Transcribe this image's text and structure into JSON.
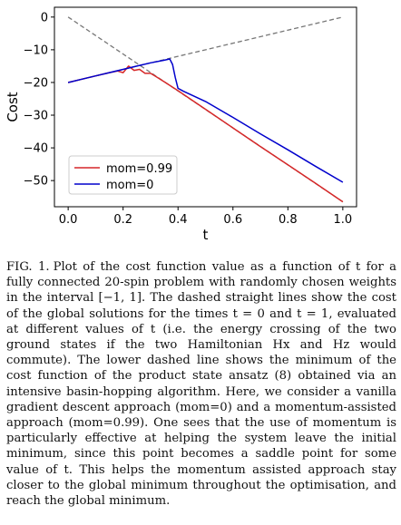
{
  "chart_data": {
    "type": "line",
    "xlabel": "t",
    "ylabel": "Cost",
    "xlim": [
      -0.05,
      1.05
    ],
    "ylim": [
      -58,
      3
    ],
    "xticks": [
      "0.0",
      "0.2",
      "0.4",
      "0.6",
      "0.8",
      "1.0"
    ],
    "xtick_values": [
      0.0,
      0.2,
      0.4,
      0.6,
      0.8,
      1.0
    ],
    "yticks": [
      "0",
      "−10",
      "−20",
      "−30",
      "−40",
      "−50"
    ],
    "ytick_values": [
      0,
      -10,
      -20,
      -30,
      -40,
      -50
    ],
    "grid": false,
    "legend_position": "lower-left",
    "series": [
      {
        "name": "mom=0.99",
        "color": "#d62728",
        "style": "solid",
        "x": [
          0.0,
          0.05,
          0.1,
          0.15,
          0.18,
          0.2,
          0.22,
          0.24,
          0.26,
          0.28,
          0.3,
          0.32,
          0.35,
          0.4,
          0.5,
          0.6,
          0.7,
          0.8,
          0.9,
          1.0
        ],
        "y": [
          -20,
          -19.0,
          -18.0,
          -17.0,
          -16.5,
          -17.0,
          -15.0,
          -16.3,
          -16.0,
          -17.2,
          -17.2,
          -18.2,
          -19.8,
          -22.5,
          -28.2,
          -33.9,
          -39.6,
          -45.2,
          -50.8,
          -56.5
        ]
      },
      {
        "name": "mom=0",
        "color": "#0000cc",
        "style": "solid",
        "x": [
          0.0,
          0.05,
          0.1,
          0.15,
          0.2,
          0.25,
          0.3,
          0.35,
          0.37,
          0.38,
          0.39,
          0.4,
          0.42,
          0.5,
          0.6,
          0.7,
          0.8,
          0.9,
          1.0
        ],
        "y": [
          -20,
          -19.0,
          -18.0,
          -17.0,
          -16.0,
          -15.0,
          -14.0,
          -13.2,
          -12.8,
          -14.5,
          -18.5,
          -21.8,
          -22.7,
          -25.8,
          -30.7,
          -35.7,
          -40.6,
          -45.6,
          -50.5
        ]
      },
      {
        "name": "",
        "color": "#777777",
        "style": "dashed",
        "x": [
          0.0,
          1.0
        ],
        "y": [
          0,
          -56.5
        ]
      },
      {
        "name": "",
        "color": "#777777",
        "style": "dashed",
        "x": [
          0.0,
          1.0
        ],
        "y": [
          -20,
          0
        ]
      }
    ]
  },
  "caption": {
    "label": "FIG. 1.",
    "text": "Plot of the cost function value as a function of t for a fully connected 20-spin problem with randomly chosen weights in the interval [−1, 1]. The dashed straight lines show the cost of the global solutions for the times t = 0 and t = 1, evaluated at different values of t (i.e. the energy crossing of the two ground states if the two Hamiltonian Hx and Hz would commute). The lower dashed line shows the minimum of the cost function of the product state ansatz (8) obtained via an intensive basin-hopping algorithm. Here, we consider a vanilla gradient descent approach (mom=0) and a momentum-assisted approach (mom=0.99). One sees that the use of momentum is particularly effective at helping the system leave the initial minimum, since this point becomes a saddle point for some value of t. This helps the momentum assisted approach stay closer to the global minimum throughout the optimisation, and reach the global minimum."
  }
}
